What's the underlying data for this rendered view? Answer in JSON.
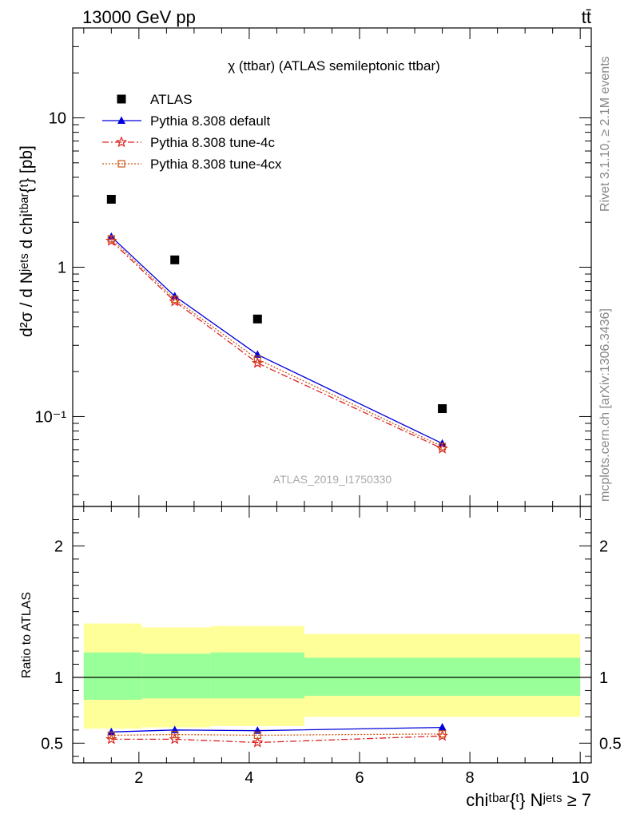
{
  "header": {
    "energy_label": "13000 GeV pp",
    "process_label": "tt̄"
  },
  "side_text": {
    "rivet": "Rivet 3.1.10, ≥ 2.1M events",
    "mcplots": "mcplots.cern.ch [arXiv:1306.3436]"
  },
  "colors": {
    "atlas": "#000000",
    "default": "#0000dd",
    "tune_4c": "#dd2222",
    "tune_4cx": "#cc5511",
    "band_inner": "#99ff99",
    "band_outer": "#ffff99"
  },
  "chart_data": [
    {
      "type": "scatter",
      "title": "χ (ttbar) (ATLAS semileptonic ttbar)",
      "ylabel": "d²σ / d Nʲᵉᵗˢ d chiᵗᵇᵃʳ{ᵗ} [pb]",
      "yscale": "log",
      "xlim": [
        0.8,
        10.2
      ],
      "ylim": [
        0.025,
        40
      ],
      "y_ticks": [
        {
          "value": 0.1,
          "label": "10⁻¹"
        },
        {
          "value": 1,
          "label": "1"
        },
        {
          "value": 10,
          "label": "10"
        }
      ],
      "watermark": "ATLAS_2019_I1750330",
      "legend_position": "top-left",
      "x": [
        1.5,
        2.65,
        4.15,
        7.5
      ],
      "series": [
        {
          "name": "ATLAS",
          "style": "square",
          "values": [
            2.85,
            1.12,
            0.45,
            0.113
          ]
        },
        {
          "name": "Pythia 8.308 default",
          "style": "triangle-solid",
          "values": [
            1.6,
            0.64,
            0.26,
            0.066
          ]
        },
        {
          "name": "Pythia 8.308 tune-4c",
          "style": "star-dashdot",
          "values": [
            1.5,
            0.59,
            0.228,
            0.061
          ]
        },
        {
          "name": "Pythia 8.308 tune-4cx",
          "style": "square-dotted",
          "values": [
            1.55,
            0.61,
            0.242,
            0.063
          ]
        }
      ]
    },
    {
      "type": "line",
      "ylabel": "Ratio to ATLAS",
      "xlabel": "chiᵗᵇᵃʳ{ᵗ} Nʲᵉᵗˢ ≥ 7",
      "xlim": [
        0.8,
        10.2
      ],
      "ylim": [
        0.35,
        2.3
      ],
      "x_ticks": [
        2,
        4,
        6,
        8,
        10
      ],
      "y_ticks": [
        0.5,
        1,
        2
      ],
      "bins": [
        {
          "x0": 1.0,
          "x1": 2.05,
          "inner": [
            0.83,
            1.19
          ],
          "outer": [
            0.61,
            1.41
          ]
        },
        {
          "x0": 2.05,
          "x1": 3.3,
          "inner": [
            0.84,
            1.18
          ],
          "outer": [
            0.62,
            1.38
          ]
        },
        {
          "x0": 3.3,
          "x1": 5.0,
          "inner": [
            0.84,
            1.19
          ],
          "outer": [
            0.63,
            1.39
          ]
        },
        {
          "x0": 5.0,
          "x1": 10.0,
          "inner": [
            0.86,
            1.15
          ],
          "outer": [
            0.7,
            1.33
          ]
        }
      ],
      "x": [
        1.5,
        2.65,
        4.15,
        7.5
      ],
      "series": [
        {
          "name": "Pythia 8.308 default",
          "values": [
            0.585,
            0.6,
            0.595,
            0.62
          ]
        },
        {
          "name": "Pythia 8.308 tune-4c",
          "values": [
            0.53,
            0.53,
            0.505,
            0.555
          ]
        },
        {
          "name": "Pythia 8.308 tune-4cx",
          "values": [
            0.56,
            0.565,
            0.56,
            0.57
          ]
        }
      ]
    }
  ]
}
